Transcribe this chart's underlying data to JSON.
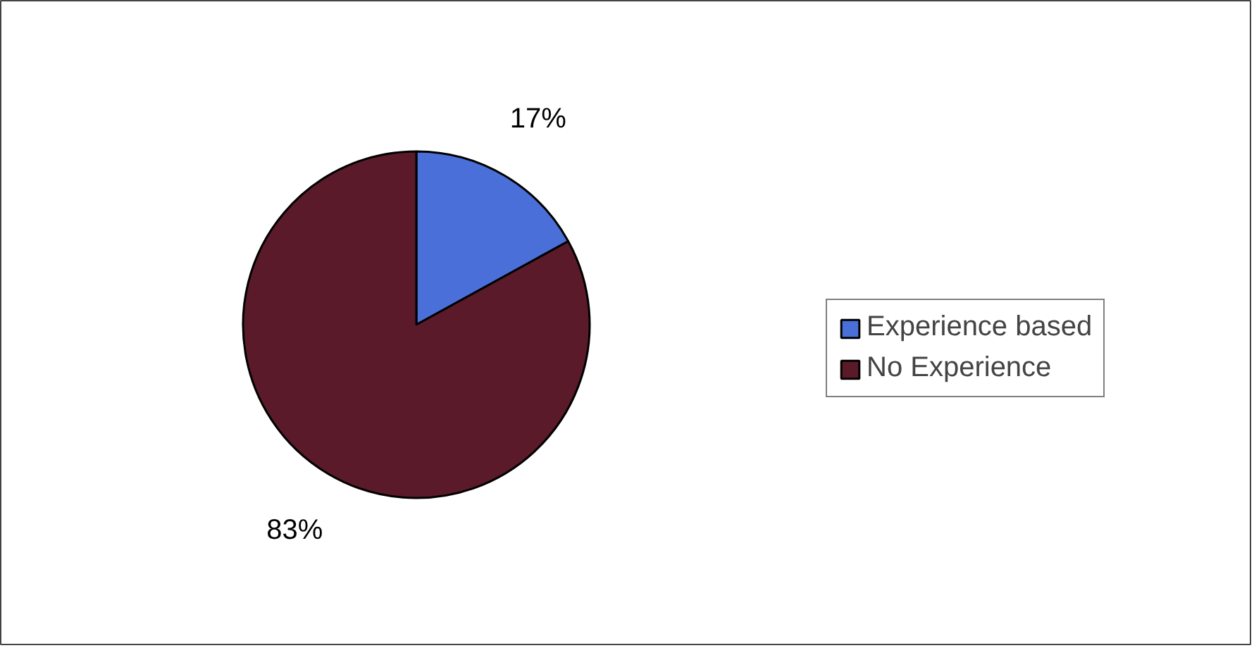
{
  "chart_data": {
    "type": "pie",
    "categories": [
      "Experience based",
      "No Experience"
    ],
    "values": [
      17,
      83
    ],
    "colors": [
      "#4a6fd8",
      "#5a1a2a"
    ],
    "value_labels": [
      "17%",
      "83%"
    ],
    "legend": "right"
  }
}
